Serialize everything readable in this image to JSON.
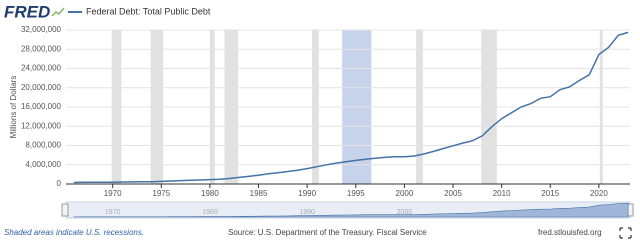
{
  "logo": "FRED",
  "chart_data": {
    "type": "line",
    "y_label": "Millions of Dollars",
    "x": [
      1966,
      1967,
      1968,
      1969,
      1970,
      1971,
      1972,
      1973,
      1974,
      1975,
      1976,
      1977,
      1978,
      1979,
      1980,
      1981,
      1982,
      1983,
      1984,
      1985,
      1986,
      1987,
      1988,
      1989,
      1990,
      1991,
      1992,
      1993,
      1994,
      1995,
      1996,
      1997,
      1998,
      1999,
      2000,
      2001,
      2002,
      2003,
      2004,
      2005,
      2006,
      2007,
      2008,
      2009,
      2010,
      2011,
      2012,
      2013,
      2014,
      2015,
      2016,
      2017,
      2018,
      2019,
      2020,
      2021,
      2022,
      2023
    ],
    "series": [
      {
        "name": "Federal Debt: Total Public Debt",
        "color": "#4572a7",
        "values": [
          320000,
          345000,
          360000,
          365000,
          380000,
          410000,
          435000,
          465000,
          480000,
          540000,
          620000,
          700000,
          770000,
          830000,
          910000,
          1000000,
          1150000,
          1380000,
          1570000,
          1820000,
          2120000,
          2350000,
          2600000,
          2860000,
          3210000,
          3600000,
          4000000,
          4350000,
          4640000,
          4900000,
          5160000,
          5370000,
          5530000,
          5660000,
          5670000,
          5810000,
          6230000,
          6780000,
          7380000,
          7930000,
          8500000,
          9000000,
          10000000,
          11900000,
          13560000,
          14800000,
          16000000,
          16700000,
          17800000,
          18150000,
          19600000,
          20200000,
          21500000,
          22700000,
          26900000,
          28400000,
          30900000,
          31500000
        ]
      }
    ],
    "xlim": [
      1965.2,
      2023.2
    ],
    "ylim": [
      0,
      32000000
    ],
    "xticks": [
      1970,
      1975,
      1980,
      1985,
      1990,
      1995,
      2000,
      2005,
      2010,
      2015,
      2020
    ],
    "yticks": [
      0,
      {
        "value": 4000000,
        "label": "4,000,000"
      },
      {
        "value": 8000000,
        "label": "8,000,000"
      },
      {
        "value": 12000000,
        "label": "12,000,000"
      },
      {
        "value": 16000000,
        "label": "16,000,000"
      },
      {
        "value": 20000000,
        "label": "20,000,000"
      },
      {
        "value": 24000000,
        "label": "24,000,000"
      },
      {
        "value": 28000000,
        "label": "28,000,000"
      },
      {
        "value": 32000000,
        "label": "32,000,000"
      }
    ],
    "grid": true,
    "recessions": [
      [
        1969.9,
        1970.9
      ],
      [
        1973.9,
        1975.2
      ],
      [
        1980.0,
        1980.5
      ],
      [
        1981.5,
        1982.9
      ],
      [
        1990.5,
        1991.2
      ],
      [
        2001.2,
        2001.9
      ],
      [
        2007.9,
        2009.5
      ],
      [
        2020.1,
        2020.4
      ]
    ],
    "highlight": [
      1993.6,
      1996.6
    ],
    "navigator_ticks": [
      1970,
      1980,
      1990,
      2000
    ],
    "note": "Shaded areas indicate U.S. recessions.",
    "source": "Source: U.S. Department of the Treasury. Fiscal Service",
    "site": "fred.stlouisfed.org"
  }
}
